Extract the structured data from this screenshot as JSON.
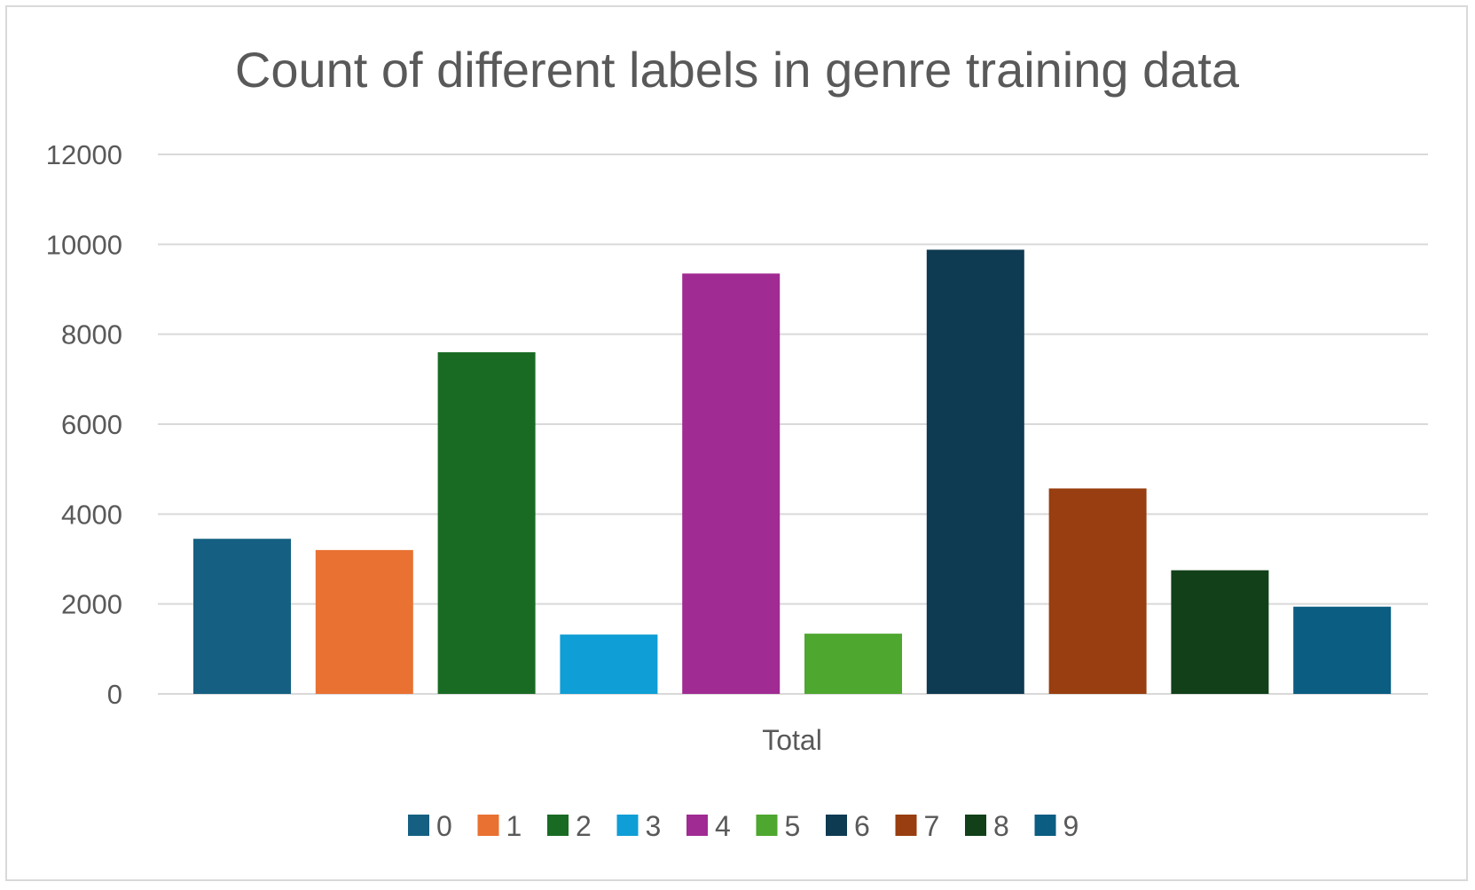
{
  "chart_data": {
    "type": "bar",
    "title": "Count of different labels in genre training data",
    "categories": [
      "Total"
    ],
    "series": [
      {
        "name": "0",
        "values": [
          3450
        ],
        "color": "#156082"
      },
      {
        "name": "1",
        "values": [
          3200
        ],
        "color": "#E97132"
      },
      {
        "name": "2",
        "values": [
          7600
        ],
        "color": "#196B24"
      },
      {
        "name": "3",
        "values": [
          1320
        ],
        "color": "#0F9ED5"
      },
      {
        "name": "4",
        "values": [
          9350
        ],
        "color": "#A02B93"
      },
      {
        "name": "5",
        "values": [
          1340
        ],
        "color": "#4EA72E"
      },
      {
        "name": "6",
        "values": [
          9880
        ],
        "color": "#0E3A52"
      },
      {
        "name": "7",
        "values": [
          4570
        ],
        "color": "#983E10"
      },
      {
        "name": "8",
        "values": [
          2750
        ],
        "color": "#114019"
      },
      {
        "name": "9",
        "values": [
          1940
        ],
        "color": "#0B5D82"
      }
    ],
    "ylim": [
      0,
      12000
    ],
    "yticks": [
      "0",
      "2000",
      "4000",
      "6000",
      "8000",
      "10000",
      "12000"
    ],
    "grid": true,
    "legend": "bottom",
    "colors": {
      "grid": "#d9d9d9",
      "text": "#595959"
    }
  }
}
